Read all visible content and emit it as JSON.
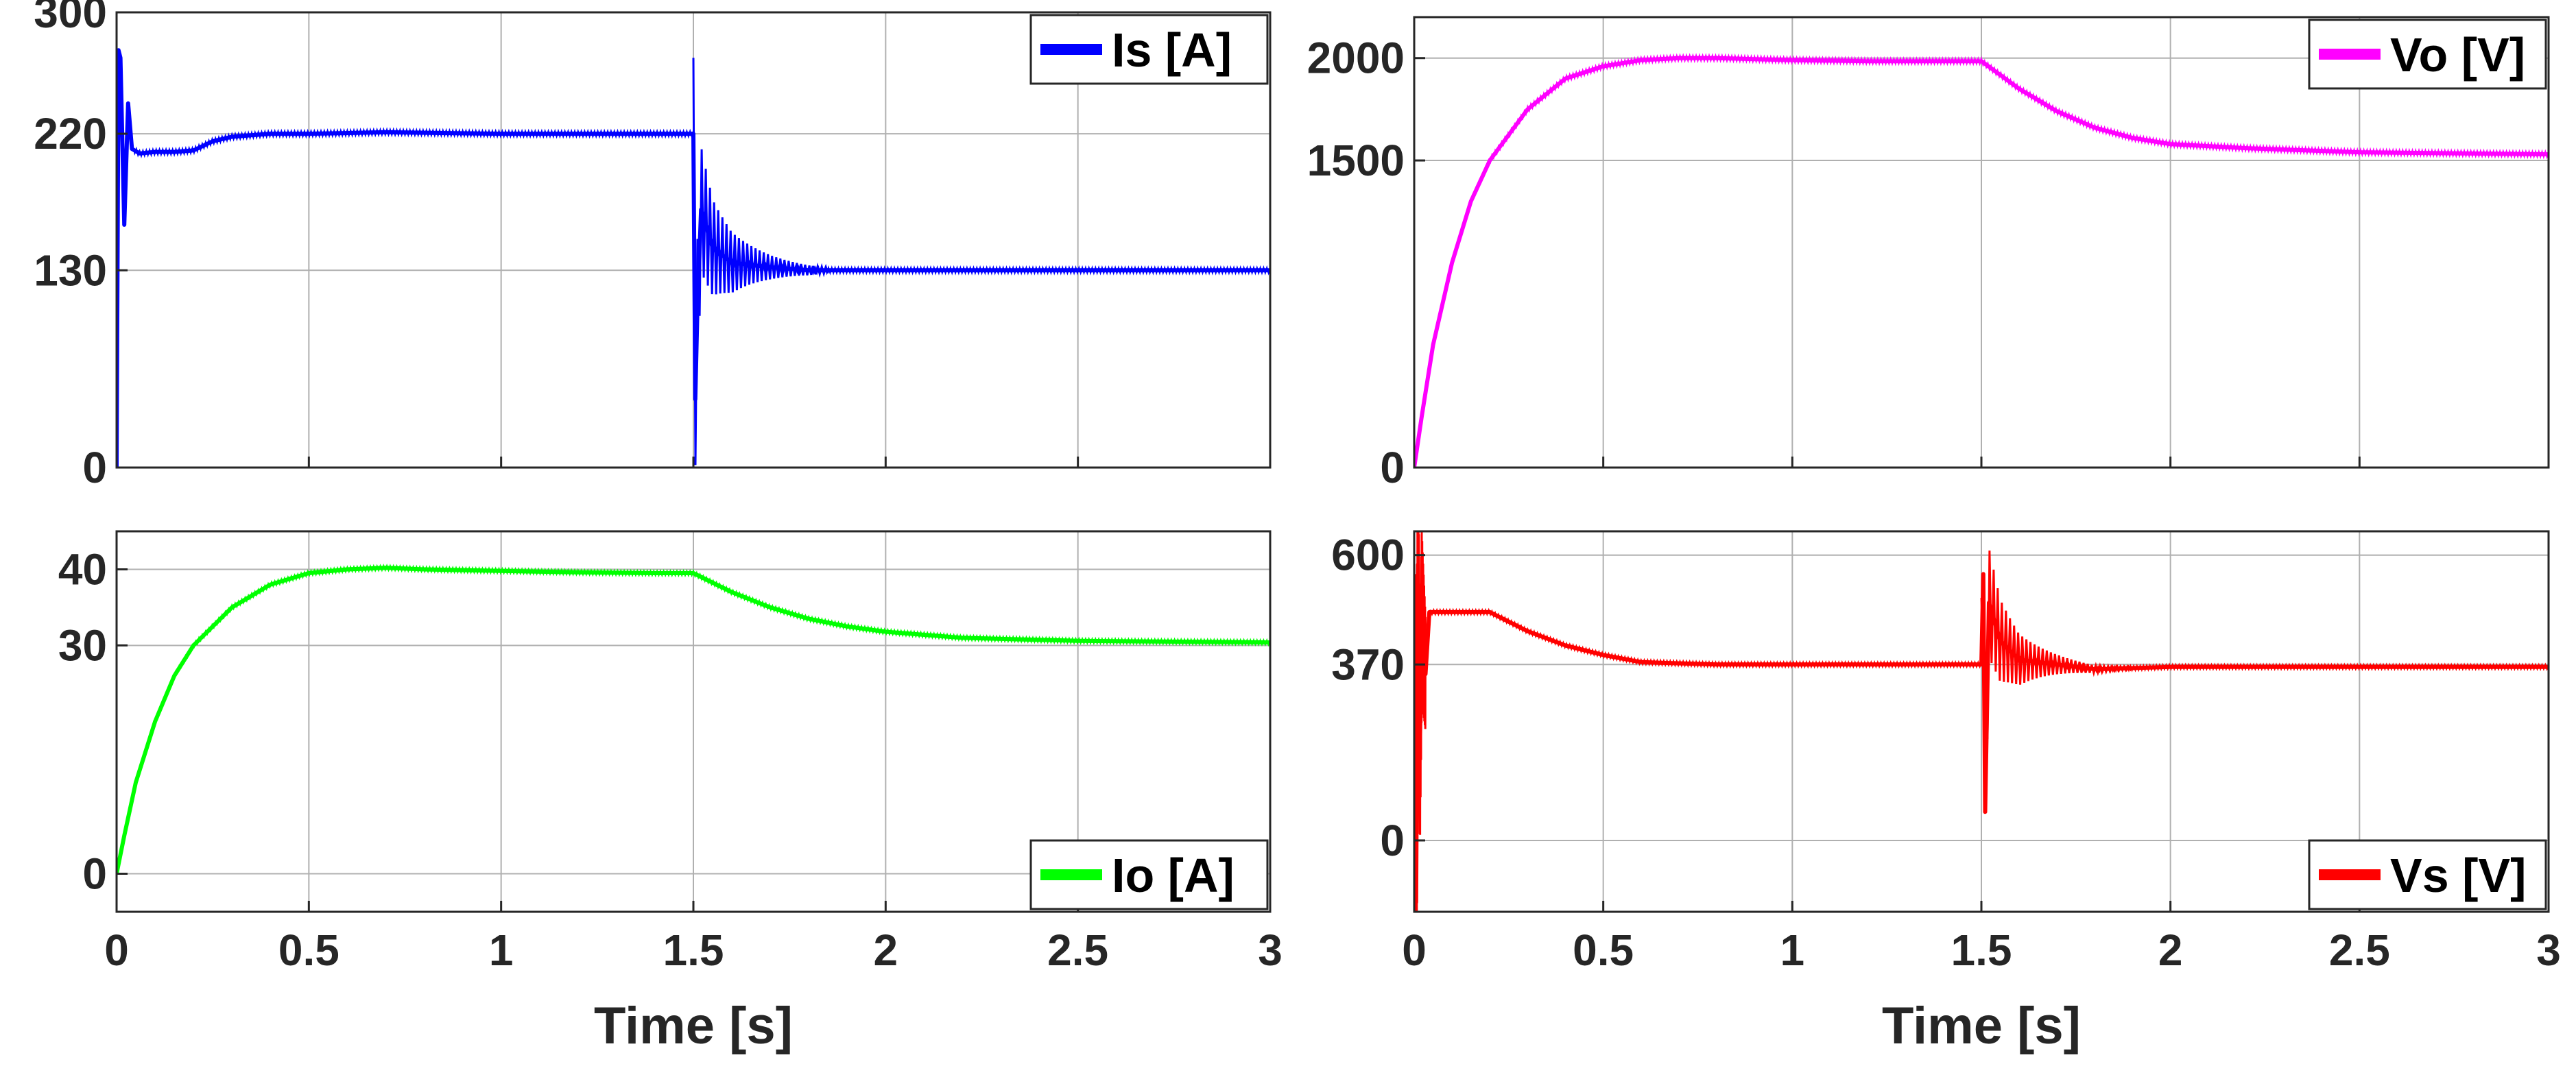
{
  "figure": {
    "xlabel": "Time [s]"
  },
  "chart_data": [
    {
      "type": "line",
      "legend": "Is [A]",
      "legend_position": "top-right",
      "color": "#0000ff",
      "xlim": [
        0,
        3
      ],
      "ylim": [
        0,
        300
      ],
      "xticks": [
        "0",
        "0.5",
        "1",
        "1.5",
        "2",
        "2.5",
        "3"
      ],
      "yticks": [
        0,
        130,
        220,
        300
      ],
      "show_xtick_labels": false,
      "grid": true,
      "series": [
        {
          "name": "Is [A]",
          "x": [
            0,
            0.005,
            0.01,
            0.02,
            0.03,
            0.04,
            0.06,
            0.1,
            0.15,
            0.2,
            0.25,
            0.3,
            0.35,
            0.4,
            0.5,
            0.7,
            1.0,
            1.3,
            1.499,
            1.5,
            1.505,
            1.51,
            1.52,
            1.55,
            1.6,
            1.7,
            1.8,
            2.0,
            2.5,
            3.0
          ],
          "y": [
            0,
            275,
            270,
            160,
            240,
            210,
            207,
            208,
            208,
            209,
            215,
            218,
            219,
            220,
            220,
            221,
            220,
            220,
            220,
            220,
            45,
            100,
            170,
            145,
            135,
            132,
            130,
            130,
            130,
            130
          ],
          "band": [
            {
              "x0": 1.5,
              "x1": 1.85,
              "amp0": 50,
              "amp1": 2
            }
          ]
        }
      ]
    },
    {
      "type": "line",
      "legend": "Vo [V]",
      "legend_position": "top-right",
      "color": "#ff00ff",
      "xlim": [
        0,
        3
      ],
      "ylim": [
        0,
        2200
      ],
      "xticks": [
        "0",
        "0.5",
        "1",
        "1.5",
        "2",
        "2.5",
        "3"
      ],
      "yticks": [
        0,
        1500,
        2000
      ],
      "show_xtick_labels": false,
      "grid": true,
      "series": [
        {
          "name": "Vo [V]",
          "x": [
            0,
            0.02,
            0.05,
            0.1,
            0.15,
            0.2,
            0.3,
            0.4,
            0.5,
            0.6,
            0.7,
            0.8,
            1.0,
            1.2,
            1.4,
            1.5,
            1.6,
            1.7,
            1.8,
            1.9,
            2.0,
            2.2,
            2.5,
            3.0
          ],
          "y": [
            0,
            250,
            600,
            1000,
            1300,
            1500,
            1750,
            1900,
            1960,
            1990,
            2000,
            2000,
            1990,
            1985,
            1985,
            1985,
            1850,
            1740,
            1660,
            1610,
            1580,
            1560,
            1540,
            1530
          ]
        }
      ]
    },
    {
      "type": "line",
      "legend": "Io [A]",
      "legend_position": "bottom-right",
      "color": "#00ff00",
      "xlim": [
        0,
        3
      ],
      "ylim": [
        -5,
        45
      ],
      "xticks": [
        "0",
        "0.5",
        "1",
        "1.5",
        "2",
        "2.5",
        "3"
      ],
      "yticks": [
        0,
        30,
        40
      ],
      "show_xtick_labels": true,
      "grid": true,
      "series": [
        {
          "name": "Io [A]",
          "x": [
            0,
            0.02,
            0.05,
            0.1,
            0.15,
            0.2,
            0.3,
            0.4,
            0.5,
            0.6,
            0.7,
            0.8,
            1.0,
            1.2,
            1.4,
            1.5,
            1.6,
            1.7,
            1.8,
            1.9,
            2.0,
            2.2,
            2.5,
            3.0
          ],
          "y": [
            0,
            5,
            12,
            20,
            26,
            30,
            35,
            38,
            39.5,
            40,
            40.2,
            40,
            39.8,
            39.6,
            39.5,
            39.5,
            37,
            35,
            33.5,
            32.5,
            31.8,
            31,
            30.6,
            30.4
          ]
        }
      ]
    },
    {
      "type": "line",
      "legend": "Vs [V]",
      "legend_position": "bottom-right",
      "color": "#ff0000",
      "xlim": [
        0,
        3
      ],
      "ylim": [
        -150,
        650
      ],
      "xticks": [
        "0",
        "0.5",
        "1",
        "1.5",
        "2",
        "2.5",
        "3"
      ],
      "yticks": [
        0,
        370,
        600
      ],
      "show_xtick_labels": true,
      "grid": true,
      "series": [
        {
          "name": "Vs [V]",
          "x": [
            0,
            0.005,
            0.01,
            0.015,
            0.02,
            0.03,
            0.04,
            0.06,
            0.1,
            0.15,
            0.2,
            0.25,
            0.3,
            0.4,
            0.5,
            0.6,
            0.8,
            1.0,
            1.2,
            1.499,
            1.5,
            1.505,
            1.51,
            1.52,
            1.55,
            1.6,
            1.7,
            1.8,
            2.0,
            2.5,
            3.0
          ],
          "y": [
            560,
            -130,
            580,
            200,
            470,
            350,
            480,
            480,
            480,
            480,
            480,
            460,
            440,
            410,
            390,
            375,
            370,
            370,
            370,
            370,
            370,
            560,
            60,
            500,
            420,
            380,
            370,
            360,
            365,
            365,
            365
          ],
          "band": [
            {
              "x0": 0.005,
              "x1": 0.03,
              "amp0": 350,
              "amp1": 120
            },
            {
              "x0": 1.5,
              "x1": 1.9,
              "amp0": 140,
              "amp1": 3
            }
          ]
        }
      ]
    }
  ]
}
